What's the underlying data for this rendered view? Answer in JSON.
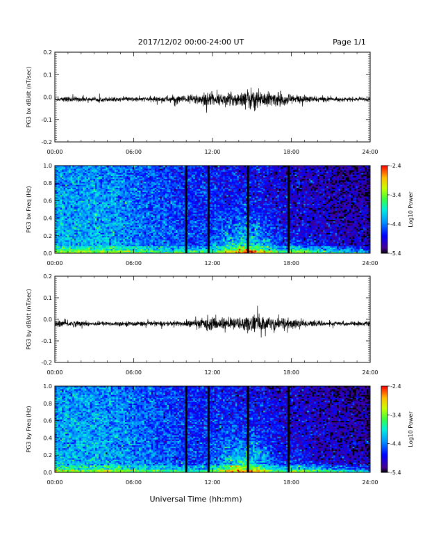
{
  "header": {
    "title": "2017/12/02  00:00-24:00 UT",
    "page": "Page 1/1"
  },
  "xlabel": "Universal Time (hh:mm)",
  "chart_data": [
    {
      "type": "line",
      "ylabel": "PG3 bx dB/dt (nT/sec)",
      "xlim": [
        0,
        24
      ],
      "ylim": [
        -0.2,
        0.2
      ],
      "x_ticks": [
        "00:00",
        "06:00",
        "12:00",
        "18:00",
        "24:00"
      ],
      "y_ticks": [
        "0.2",
        "0.1",
        "0.0",
        "-0.1",
        "-0.2"
      ],
      "baseline": -0.01,
      "envelope": [
        [
          0,
          0.004
        ],
        [
          1,
          0.006
        ],
        [
          2,
          0.005
        ],
        [
          3,
          0.004
        ],
        [
          4,
          0.005
        ],
        [
          5,
          0.004
        ],
        [
          6,
          0.005
        ],
        [
          7,
          0.005
        ],
        [
          8,
          0.006
        ],
        [
          9,
          0.008
        ],
        [
          10,
          0.008
        ],
        [
          10.5,
          0.012
        ],
        [
          11,
          0.012
        ],
        [
          11.5,
          0.022
        ],
        [
          12,
          0.012
        ],
        [
          12.5,
          0.01
        ],
        [
          13,
          0.014
        ],
        [
          14,
          0.016
        ],
        [
          15,
          0.025
        ],
        [
          16,
          0.018
        ],
        [
          16.5,
          0.015
        ],
        [
          17,
          0.015
        ],
        [
          18,
          0.012
        ],
        [
          19,
          0.008
        ],
        [
          20,
          0.006
        ],
        [
          21,
          0.005
        ],
        [
          22,
          0.004
        ],
        [
          23,
          0.004
        ],
        [
          24,
          0.004
        ]
      ]
    },
    {
      "type": "heatmap",
      "ylabel": "PG3 bx Freq (Hz)",
      "xlim": [
        0,
        24
      ],
      "ylim": [
        0,
        1.0
      ],
      "x_ticks": [
        "00:00",
        "06:00",
        "12:00",
        "18:00",
        "24:00"
      ],
      "y_ticks": [
        "1.0",
        "0.8",
        "0.6",
        "0.4",
        "0.2",
        "0.0"
      ],
      "colorbar": {
        "label": "Log10 Power",
        "ticks": [
          "-2.4",
          "-3.4",
          "-4.4",
          "-5.4"
        ],
        "range": [
          -5.4,
          -2.4
        ]
      },
      "gaps_hours": [
        10,
        11.7,
        14.7,
        17.8
      ]
    },
    {
      "type": "line",
      "ylabel": "PG3 by dB/dt (nT/sec)",
      "xlim": [
        0,
        24
      ],
      "ylim": [
        -0.2,
        0.2
      ],
      "x_ticks": [
        "00:00",
        "06:00",
        "12:00",
        "18:00",
        "24:00"
      ],
      "y_ticks": [
        "0.2",
        "0.1",
        "0.0",
        "-0.1",
        "-0.2"
      ],
      "baseline": -0.02,
      "envelope": [
        [
          0,
          0.006
        ],
        [
          0.5,
          0.009
        ],
        [
          1,
          0.007
        ],
        [
          2,
          0.006
        ],
        [
          3,
          0.005
        ],
        [
          4,
          0.005
        ],
        [
          5,
          0.005
        ],
        [
          6,
          0.005
        ],
        [
          7,
          0.005
        ],
        [
          8,
          0.005
        ],
        [
          9,
          0.006
        ],
        [
          10,
          0.007
        ],
        [
          11,
          0.01
        ],
        [
          11.7,
          0.018
        ],
        [
          12,
          0.012
        ],
        [
          13,
          0.014
        ],
        [
          14,
          0.014
        ],
        [
          15,
          0.02
        ],
        [
          16,
          0.018
        ],
        [
          17,
          0.018
        ],
        [
          18,
          0.012
        ],
        [
          19,
          0.008
        ],
        [
          20,
          0.006
        ],
        [
          21,
          0.005
        ],
        [
          22,
          0.005
        ],
        [
          23,
          0.005
        ],
        [
          24,
          0.005
        ]
      ]
    },
    {
      "type": "heatmap",
      "ylabel": "PG3 by Freq (Hz)",
      "xlim": [
        0,
        24
      ],
      "ylim": [
        0,
        1.0
      ],
      "x_ticks": [
        "00:00",
        "06:00",
        "12:00",
        "18:00",
        "24:00"
      ],
      "y_ticks": [
        "1.0",
        "0.8",
        "0.6",
        "0.4",
        "0.2",
        "0.0"
      ],
      "colorbar": {
        "label": "Log10 Power",
        "ticks": [
          "-2.4",
          "-3.4",
          "-4.4",
          "-5.4"
        ],
        "range": [
          -5.4,
          -2.4
        ]
      },
      "gaps_hours": [
        10,
        11.7,
        14.7,
        17.8
      ]
    }
  ]
}
